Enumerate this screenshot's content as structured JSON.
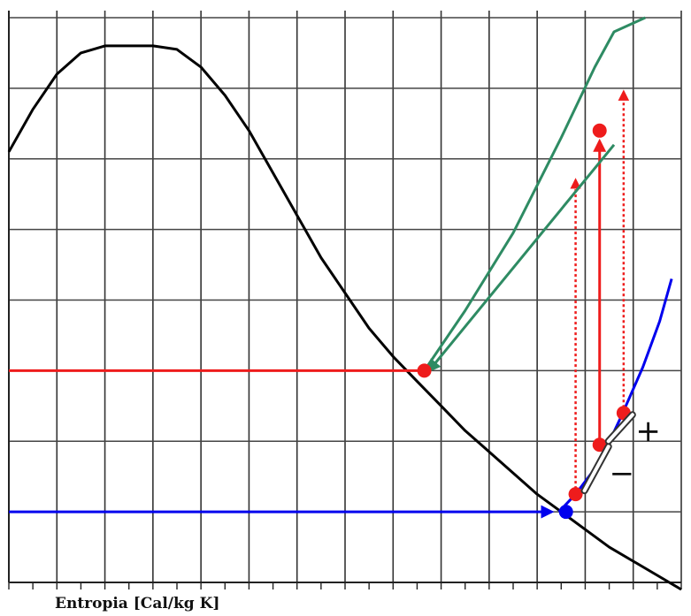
{
  "chart_data": {
    "type": "line",
    "title": "",
    "xlabel": "Entropia [Cal/kg K]",
    "ylabel": "",
    "grid": true,
    "xlim": [
      0,
      14
    ],
    "ylim": [
      0,
      8.1
    ],
    "series": [
      {
        "color": "#000000",
        "style": "solid",
        "points": [
          [
            0,
            6.1
          ],
          [
            0.5,
            6.7
          ],
          [
            1,
            7.2
          ],
          [
            1.5,
            7.5
          ],
          [
            2,
            7.6
          ],
          [
            2.5,
            7.6
          ],
          [
            3,
            7.6
          ],
          [
            3.5,
            7.55
          ],
          [
            4,
            7.3
          ],
          [
            4.5,
            6.9
          ],
          [
            5,
            6.4
          ],
          [
            5.5,
            5.8
          ],
          [
            6,
            5.2
          ],
          [
            6.5,
            4.6
          ],
          [
            7,
            4.1
          ],
          [
            7.5,
            3.6
          ],
          [
            8,
            3.2
          ],
          [
            8.5,
            2.85
          ],
          [
            9,
            2.5
          ],
          [
            9.5,
            2.15
          ],
          [
            10,
            1.85
          ],
          [
            10.5,
            1.55
          ],
          [
            11,
            1.25
          ],
          [
            11.5,
            1.0
          ],
          [
            12,
            0.75
          ],
          [
            12.5,
            0.5
          ],
          [
            13,
            0.3
          ],
          [
            13.5,
            0.1
          ],
          [
            14,
            -0.1
          ]
        ]
      },
      {
        "color": "#2e8b63",
        "style": "solid",
        "points": [
          [
            8.65,
            3.0
          ],
          [
            9.5,
            3.85
          ],
          [
            10.5,
            4.95
          ],
          [
            11.5,
            6.3
          ],
          [
            12.2,
            7.3
          ],
          [
            12.6,
            7.8
          ],
          [
            13.25,
            8.0
          ]
        ]
      },
      {
        "color": "#0000ee",
        "style": "solid",
        "points": [
          [
            11.45,
            1.0
          ],
          [
            11.8,
            1.25
          ],
          [
            12.3,
            1.7
          ],
          [
            12.75,
            2.35
          ],
          [
            13.2,
            3.05
          ],
          [
            13.55,
            3.7
          ],
          [
            13.8,
            4.3
          ]
        ]
      }
    ],
    "arrows": [
      {
        "color": "#ee1c1c",
        "style": "dashed",
        "x": 11.8,
        "y_from": 1.25,
        "y_to": 5.7
      },
      {
        "color": "#ee1c1c",
        "style": "solid",
        "x": 12.3,
        "y_from": 1.95,
        "y_to": 6.25
      },
      {
        "color": "#ee1c1c",
        "style": "dashed",
        "x": 12.8,
        "y_from": 2.4,
        "y_to": 6.95
      },
      {
        "color": "#0000ee",
        "style": "solid",
        "x_from": 0,
        "x_to": 11.3,
        "y": 1.0
      },
      {
        "color": "#2e8b63",
        "style": "solid",
        "x_from": 12.6,
        "y_from": 6.2,
        "x_to": 8.75,
        "y_to": 3.0
      }
    ],
    "hlines": [
      {
        "color": "#ee1c1c",
        "x_from": 0,
        "x_to": 8.65,
        "y": 3.0
      }
    ],
    "markers": [
      {
        "color": "#ee1c1c",
        "x": 8.65,
        "y": 3.0
      },
      {
        "color": "#0000ee",
        "x": 11.6,
        "y": 1.0
      },
      {
        "color": "#ee1c1c",
        "x": 11.8,
        "y": 1.25
      },
      {
        "color": "#ee1c1c",
        "x": 12.3,
        "y": 1.95
      },
      {
        "color": "#ee1c1c",
        "x": 12.8,
        "y": 2.4
      },
      {
        "color": "#ee1c1c",
        "x": 12.3,
        "y": 6.4
      }
    ],
    "annotations": [
      {
        "text": "+",
        "x": 13.05,
        "y": 2.0
      },
      {
        "text": "−",
        "x": 12.5,
        "y": 1.4
      }
    ]
  }
}
